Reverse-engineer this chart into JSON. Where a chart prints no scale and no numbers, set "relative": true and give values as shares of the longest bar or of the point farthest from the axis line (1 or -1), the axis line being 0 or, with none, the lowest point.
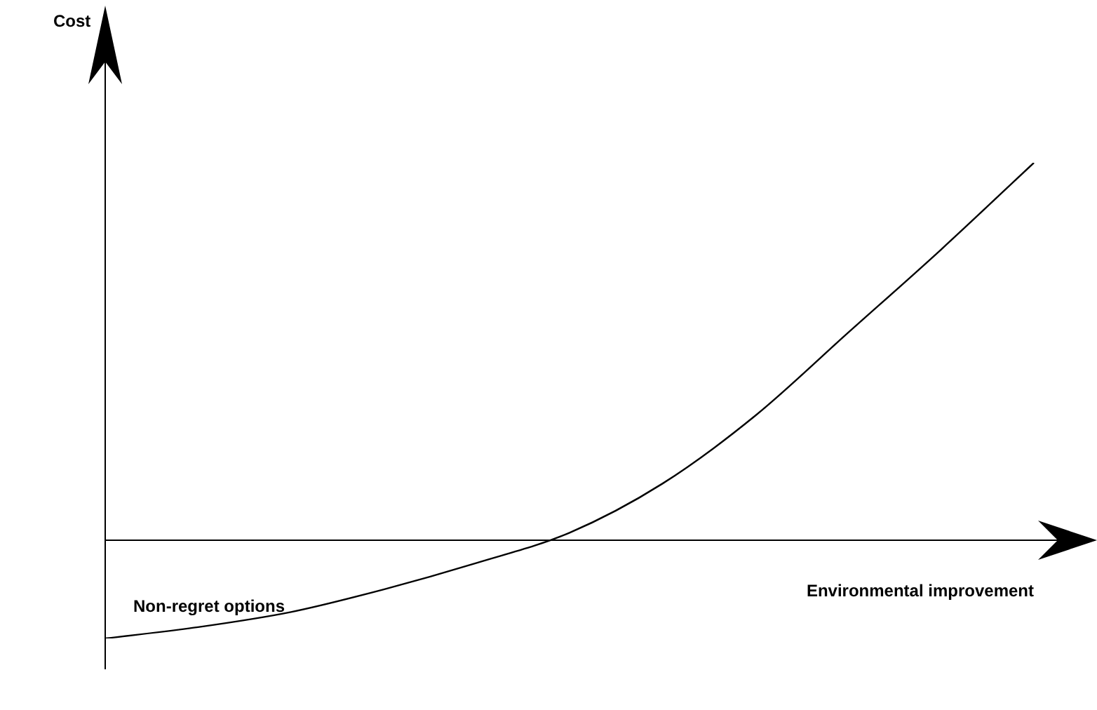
{
  "chart_data": {
    "type": "line",
    "relative": true,
    "xlabel": "Environmental improvement",
    "annotations": [
      "Cost",
      "Non-regret options"
    ],
    "categories": [
      null,
      null,
      null,
      null,
      null,
      null,
      null,
      null,
      null,
      null,
      null
    ],
    "values": [
      -0.26,
      -0.23,
      -0.19,
      -0.13,
      -0.06,
      0.02,
      0.15,
      0.33,
      0.55,
      0.77,
      1
    ],
    "color": "#000000",
    "marker": "none",
    "line_style": "solid",
    "legend": false
  }
}
